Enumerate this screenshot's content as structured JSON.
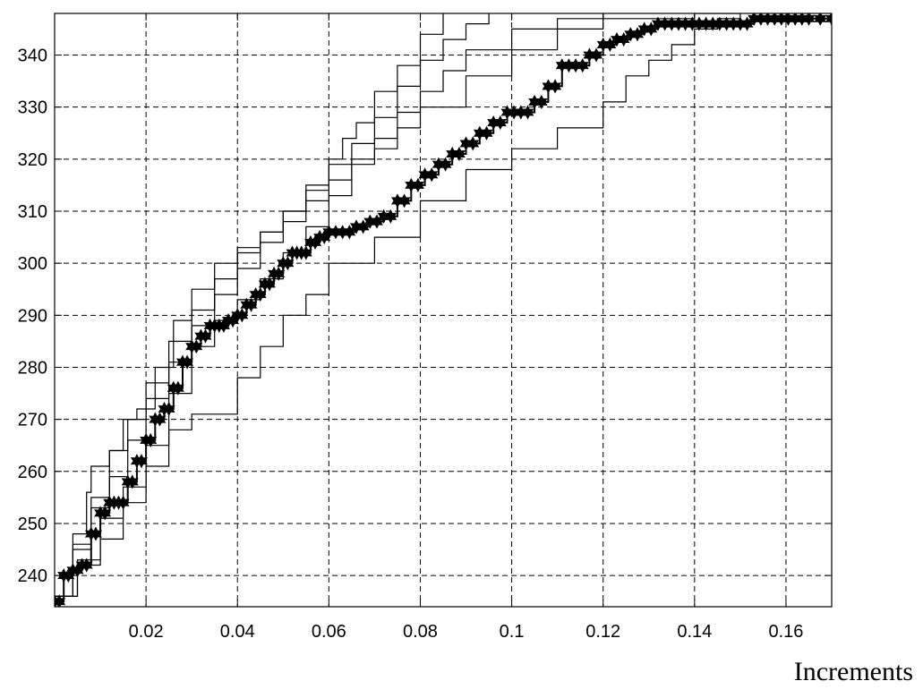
{
  "chart_data": {
    "type": "line",
    "title": "",
    "xlabel": "Increments",
    "ylabel": "",
    "xlim": [
      0,
      0.17
    ],
    "ylim": [
      234,
      348
    ],
    "xticks": [
      0.02,
      0.04,
      0.06,
      0.08,
      0.1,
      0.12,
      0.14,
      0.16
    ],
    "xtick_labels": [
      "0.02",
      "0.04",
      "0.06",
      "0.08",
      "0.1",
      "0.12",
      "0.14",
      "0.16"
    ],
    "yticks": [
      240,
      250,
      260,
      270,
      280,
      290,
      300,
      310,
      320,
      330,
      340
    ],
    "ytick_labels": [
      "240",
      "250",
      "260",
      "270",
      "280",
      "290",
      "300",
      "310",
      "320",
      "330",
      "340"
    ],
    "grid": true,
    "series": [
      {
        "style": "line",
        "x": [
          0,
          0.004,
          0.007,
          0.008,
          0.012,
          0.015,
          0.018,
          0.022,
          0.026,
          0.03,
          0.035,
          0.04,
          0.045,
          0.05,
          0.055,
          0.06,
          0.063,
          0.066,
          0.07,
          0.075,
          0.08,
          0.085
        ],
        "y": [
          236,
          248,
          256,
          261,
          264,
          270,
          272,
          280,
          289,
          295,
          300,
          303,
          306,
          310,
          314,
          320,
          324,
          327,
          333,
          338,
          344,
          348
        ]
      },
      {
        "style": "line",
        "x": [
          0,
          0.004,
          0.008,
          0.012,
          0.016,
          0.02,
          0.025,
          0.03,
          0.035,
          0.04,
          0.045,
          0.05,
          0.055,
          0.06,
          0.065,
          0.07,
          0.075,
          0.08,
          0.085,
          0.09,
          0.095
        ],
        "y": [
          236,
          246,
          255,
          264,
          270,
          277,
          285,
          291,
          297,
          302,
          306,
          310,
          315,
          319,
          323,
          328,
          334,
          339,
          343,
          346,
          348
        ]
      },
      {
        "style": "line",
        "x": [
          0,
          0.005,
          0.01,
          0.015,
          0.02,
          0.025,
          0.03,
          0.035,
          0.04,
          0.045,
          0.05,
          0.055,
          0.06,
          0.065,
          0.07,
          0.075,
          0.08,
          0.09,
          0.1,
          0.11,
          0.12,
          0.13,
          0.14,
          0.15
        ],
        "y": [
          236,
          243,
          251,
          257,
          265,
          275,
          284,
          289,
          293,
          297,
          302,
          307,
          313,
          319,
          322,
          326,
          330,
          336,
          341,
          345,
          347,
          347,
          348,
          348
        ]
      },
      {
        "style": "line",
        "x": [
          0,
          0.004,
          0.008,
          0.012,
          0.016,
          0.02,
          0.025,
          0.03,
          0.035,
          0.04,
          0.045,
          0.05,
          0.055,
          0.06,
          0.065,
          0.07,
          0.075,
          0.08,
          0.085,
          0.09,
          0.1,
          0.11,
          0.12
        ],
        "y": [
          236,
          245,
          253,
          259,
          266,
          274,
          281,
          288,
          294,
          299,
          304,
          308,
          312,
          316,
          320,
          324,
          329,
          333,
          337,
          341,
          345,
          347,
          348
        ]
      },
      {
        "style": "line",
        "x": [
          0,
          0.005,
          0.01,
          0.015,
          0.02,
          0.025,
          0.03,
          0.035,
          0.04,
          0.045,
          0.05,
          0.055,
          0.06,
          0.07,
          0.08,
          0.09,
          0.1,
          0.11,
          0.12,
          0.125,
          0.13,
          0.135,
          0.14,
          0.145,
          0.15
        ],
        "y": [
          236,
          242,
          247,
          254,
          261,
          268,
          271,
          271,
          278,
          284,
          290,
          294,
          300,
          305,
          312,
          318,
          322,
          326,
          331,
          336,
          339,
          342,
          345,
          347,
          348
        ]
      },
      {
        "style": "marked",
        "x": [
          0,
          0.002,
          0.004,
          0.006,
          0.008,
          0.01,
          0.012,
          0.014,
          0.016,
          0.018,
          0.02,
          0.022,
          0.024,
          0.026,
          0.028,
          0.03,
          0.032,
          0.034,
          0.036,
          0.038,
          0.04,
          0.042,
          0.044,
          0.046,
          0.048,
          0.05,
          0.052,
          0.054,
          0.056,
          0.058,
          0.06,
          0.063,
          0.066,
          0.069,
          0.072,
          0.075,
          0.078,
          0.081,
          0.084,
          0.087,
          0.09,
          0.093,
          0.096,
          0.099,
          0.102,
          0.105,
          0.108,
          0.111,
          0.114,
          0.117,
          0.12,
          0.123,
          0.126,
          0.129,
          0.132,
          0.135,
          0.138,
          0.141,
          0.144,
          0.147,
          0.15,
          0.153,
          0.156,
          0.159,
          0.162,
          0.165,
          0.17
        ],
        "y": [
          235,
          240,
          241,
          242,
          248,
          252,
          254,
          254,
          258,
          262,
          266,
          270,
          272,
          276,
          281,
          284,
          286,
          288,
          288,
          289,
          290,
          292,
          294,
          296,
          298,
          300,
          302,
          302,
          304,
          305,
          306,
          306,
          307,
          308,
          309,
          312,
          315,
          317,
          319,
          321,
          323,
          325,
          327,
          329,
          329,
          331,
          334,
          338,
          338,
          340,
          342,
          343,
          344,
          345,
          346,
          346,
          346,
          346,
          346,
          346,
          346,
          347,
          347,
          347,
          347,
          347,
          347
        ]
      }
    ]
  }
}
